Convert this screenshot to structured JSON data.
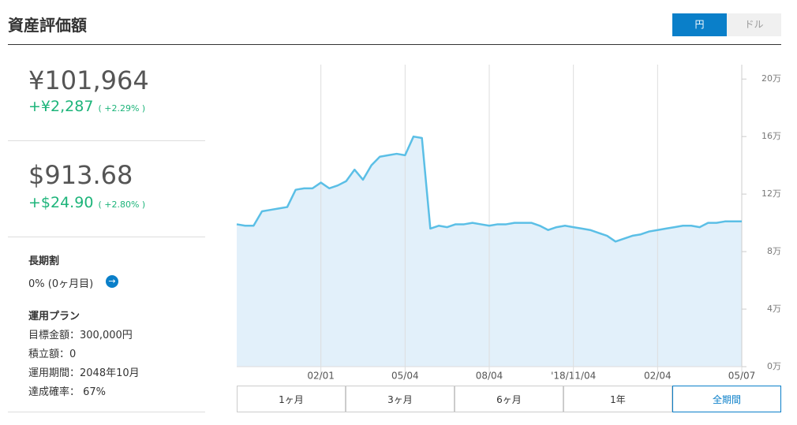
{
  "header": {
    "title": "資産評価額",
    "currency_toggle": [
      "円",
      "ドル"
    ]
  },
  "summary": {
    "yen": {
      "amount": "¥101,964",
      "change": "+¥2,287",
      "change_pct": "( +2.29% )"
    },
    "usd": {
      "amount": "$913.68",
      "change": "+$24.90",
      "change_pct": "( +2.80% )"
    }
  },
  "plan": {
    "discount_title": "長期割",
    "discount_value": "0% (0ヶ月目)",
    "plan_title": "運用プラン",
    "items": [
      "目標金額：300,000円",
      "積立額：0",
      "運用期間：2048年10月",
      "達成確率： 67%"
    ]
  },
  "period_buttons": [
    "1ヶ月",
    "3ヶ月",
    "6ヶ月",
    "1年",
    "全期間"
  ],
  "chart_data": {
    "type": "area",
    "categories": [
      null,
      null,
      null,
      null,
      null,
      null,
      null,
      null,
      null,
      null,
      "02/01",
      null,
      null,
      null,
      null,
      null,
      null,
      null,
      null,
      null,
      "05/04",
      null,
      null,
      null,
      null,
      null,
      null,
      null,
      null,
      null,
      "08/04",
      null,
      null,
      null,
      null,
      null,
      null,
      null,
      null,
      null,
      "'18/11/04",
      null,
      null,
      null,
      null,
      null,
      null,
      null,
      null,
      null,
      "02/04",
      null,
      null,
      null,
      null,
      null,
      null,
      null,
      null,
      null,
      "05/07"
    ],
    "series": [
      {
        "color": "#5bbfe6",
        "fill": "#e2f0fa",
        "values": [
          99000,
          98000,
          98000,
          108000,
          109000,
          110000,
          111000,
          123000,
          124000,
          124000,
          128000,
          124000,
          126000,
          129000,
          137000,
          130000,
          140000,
          146000,
          147000,
          148000,
          147000,
          160000,
          159000,
          96000,
          98000,
          97000,
          99000,
          99000,
          100000,
          99000,
          98000,
          99000,
          99000,
          100000,
          100000,
          100000,
          98000,
          95000,
          97000,
          98000,
          97000,
          96000,
          95000,
          93000,
          91000,
          87000,
          89000,
          91000,
          92000,
          94000,
          95000,
          96000,
          97000,
          98000,
          98000,
          97000,
          100000,
          100000,
          101000,
          101000,
          101000
        ]
      }
    ],
    "ylim": [
      0,
      210000
    ],
    "yticks": [
      {
        "value": 0,
        "label": "0万"
      },
      {
        "value": 40000,
        "label": "4万"
      },
      {
        "value": 80000,
        "label": "8万"
      },
      {
        "value": 120000,
        "label": "12万"
      },
      {
        "value": 160000,
        "label": "16万"
      },
      {
        "value": 200000,
        "label": "20万"
      }
    ],
    "grid": true
  }
}
